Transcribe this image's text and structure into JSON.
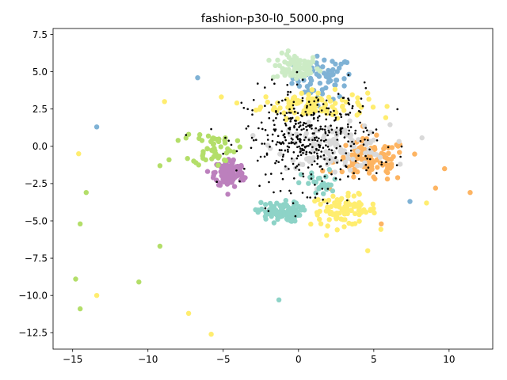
{
  "chart_data": {
    "type": "scatter",
    "title": "fashion-p30-l0_5000.png",
    "xlabel": "",
    "ylabel": "",
    "xlim": [
      -16.3,
      12.9
    ],
    "ylim": [
      -13.6,
      7.9
    ],
    "xticks": [
      -15,
      -10,
      -5,
      0,
      5,
      10
    ],
    "xtick_labels": [
      "−15",
      "−10",
      "−5",
      "0",
      "5",
      "10"
    ],
    "yticks": [
      -12.5,
      -10.0,
      -7.5,
      -5.0,
      -2.5,
      0.0,
      2.5,
      5.0,
      7.5
    ],
    "ytick_labels": [
      "−12.5",
      "−10.0",
      "−7.5",
      "−5.0",
      "−2.5",
      "0.0",
      "2.5",
      "5.0",
      "7.5"
    ],
    "grid": false,
    "legend": "none",
    "series": [
      {
        "color": "#7fb2d5",
        "clusters": [
          {
            "center": [
              1.6,
              4.6
            ],
            "spread": [
              1.8,
              1.3
            ],
            "count": 70
          }
        ],
        "points": [
          [
            -6.7,
            4.6
          ],
          [
            -13.4,
            1.3
          ],
          [
            7.4,
            -3.7
          ]
        ]
      },
      {
        "color": "#ccebc5",
        "clusters": [
          {
            "center": [
              -0.2,
              5.3
            ],
            "spread": [
              1.4,
              0.8
            ],
            "count": 80
          }
        ],
        "points": []
      },
      {
        "color": "#ffed6f",
        "clusters": [
          {
            "center": [
              1.0,
              2.8
            ],
            "spread": [
              3.2,
              0.8
            ],
            "count": 110
          },
          {
            "center": [
              3.0,
              -4.3
            ],
            "spread": [
              2.0,
              0.9
            ],
            "count": 90
          }
        ],
        "points": [
          [
            -8.9,
            3.0
          ],
          [
            -14.6,
            -0.5
          ],
          [
            -13.4,
            -10.0
          ],
          [
            -7.3,
            -11.2
          ],
          [
            -5.8,
            -12.6
          ],
          [
            4.6,
            -7.0
          ],
          [
            8.5,
            -3.8
          ]
        ]
      },
      {
        "color": "#fdb462",
        "clusters": [
          {
            "center": [
              4.8,
              -1.0
            ],
            "spread": [
              2.2,
              1.3
            ],
            "count": 110
          }
        ],
        "points": [
          [
            11.4,
            -3.1
          ],
          [
            9.7,
            -1.5
          ],
          [
            9.1,
            -2.8
          ],
          [
            5.5,
            -5.2
          ]
        ]
      },
      {
        "color": "#d9d9d9",
        "clusters": [
          {
            "center": [
              2.3,
              0.0
            ],
            "spread": [
              3.4,
              1.3
            ],
            "count": 120
          }
        ],
        "points": []
      },
      {
        "color": "#bc80bd",
        "clusters": [
          {
            "center": [
              -4.6,
              -1.8
            ],
            "spread": [
              0.9,
              0.9
            ],
            "count": 120
          }
        ],
        "points": []
      },
      {
        "color": "#b3de69",
        "clusters": [
          {
            "center": [
              -5.6,
              -0.1
            ],
            "spread": [
              1.3,
              1.1
            ],
            "count": 50
          }
        ],
        "points": [
          [
            -14.1,
            -3.1
          ],
          [
            -14.5,
            -5.2
          ],
          [
            -14.8,
            -8.9
          ],
          [
            -14.5,
            -10.9
          ],
          [
            -10.6,
            -9.1
          ],
          [
            -9.2,
            -6.7
          ],
          [
            -9.2,
            -1.3
          ],
          [
            -8.6,
            -0.9
          ],
          [
            -8.0,
            0.4
          ],
          [
            -7.3,
            0.8
          ]
        ]
      },
      {
        "color": "#8dd3c7",
        "clusters": [
          {
            "center": [
              -1.3,
              -4.4
            ],
            "spread": [
              1.3,
              0.6
            ],
            "count": 90
          },
          {
            "center": [
              1.5,
              -2.5
            ],
            "spread": [
              1.2,
              0.8
            ],
            "count": 30
          }
        ],
        "points": [
          [
            -1.3,
            -10.3
          ]
        ]
      },
      {
        "color": "#000000",
        "small": true,
        "clusters": [
          {
            "center": [
              0.8,
              0.5
            ],
            "spread": [
              4.0,
              3.0
            ],
            "count": 420
          }
        ],
        "points": []
      }
    ]
  }
}
